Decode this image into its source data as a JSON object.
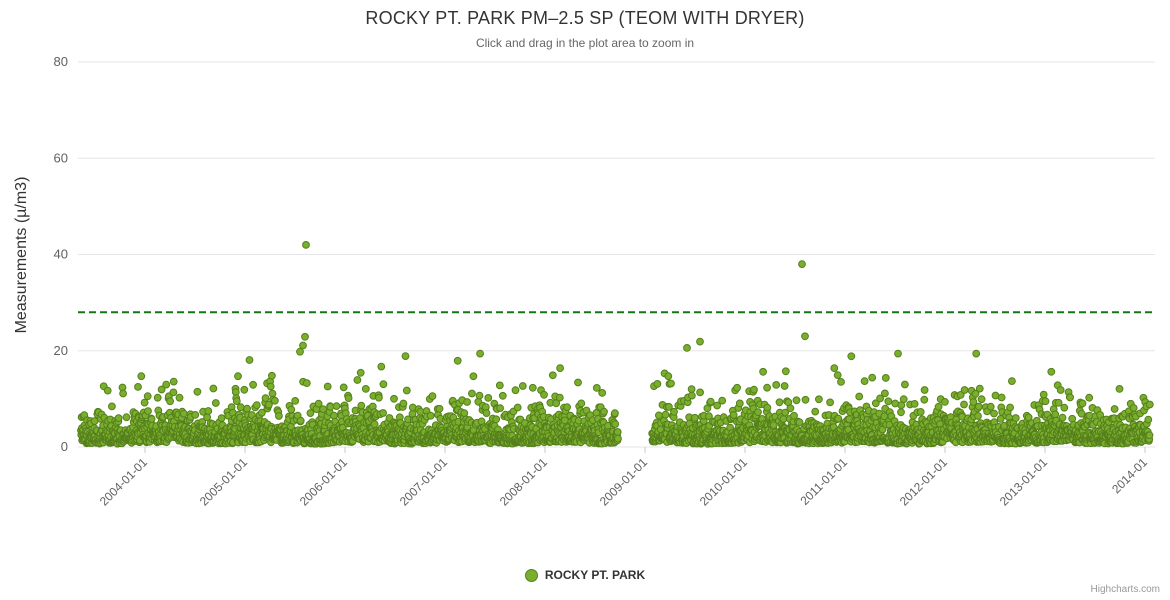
{
  "credits": "Highcharts.com",
  "colors": {
    "marker_fill": "#7aaf2d",
    "marker_stroke": "#557f1c",
    "threshold_green": "#117811",
    "grid": "#e6e6e6",
    "tick_label": "#606060",
    "title_text": "#333333",
    "subtitle_text": "#666666"
  },
  "chart_data": {
    "type": "scatter",
    "title": "ROCKY PT. PARK PM–2.5 SP (TEOM WITH DRYER)",
    "subtitle": "Click and drag in the plot area to zoom in",
    "xlabel": "",
    "ylabel": "Measurements (µ/m3)",
    "ylim": [
      0,
      80
    ],
    "yticks": [
      0,
      20,
      40,
      60,
      80
    ],
    "xlim": [
      2003.33,
      2014.1
    ],
    "xtick_positions": [
      2004,
      2005,
      2006,
      2007,
      2008,
      2009,
      2010,
      2011,
      2012,
      2013,
      2014
    ],
    "xtick_labels": [
      "2004-01-01",
      "2005-01-01",
      "2006-01-01",
      "2007-01-01",
      "2008-01-01",
      "2009-01-01",
      "2010-01-01",
      "2011-01-01",
      "2012-01-01",
      "2013-01-01",
      "2014-01"
    ],
    "grid": true,
    "legend_position": "bottom",
    "threshold_line": {
      "y": 28,
      "style": "dashed",
      "color": "#117811"
    },
    "series": [
      {
        "name": "ROCKY PT. PARK",
        "marker_color": "#7aaf2d",
        "marker_stroke": "#557f1c"
      }
    ],
    "data_gap": [
      2008.73,
      2009.07
    ],
    "generator": {
      "seed": 42,
      "start": 2003.36,
      "end": 2014.05,
      "points_per_year": 330,
      "base": 0.8,
      "scale": 2.7,
      "seasonal_amp": 0.2,
      "seasonal_phase": 0.9,
      "min": 0.3,
      "max": 19.4
    },
    "outliers": [
      [
        2005.55,
        19.8
      ],
      [
        2005.58,
        21.1
      ],
      [
        2005.6,
        22.9
      ],
      [
        2005.61,
        42.0
      ],
      [
        2009.42,
        20.6
      ],
      [
        2009.55,
        21.9
      ],
      [
        2010.57,
        38.0
      ],
      [
        2010.6,
        23.0
      ]
    ]
  }
}
